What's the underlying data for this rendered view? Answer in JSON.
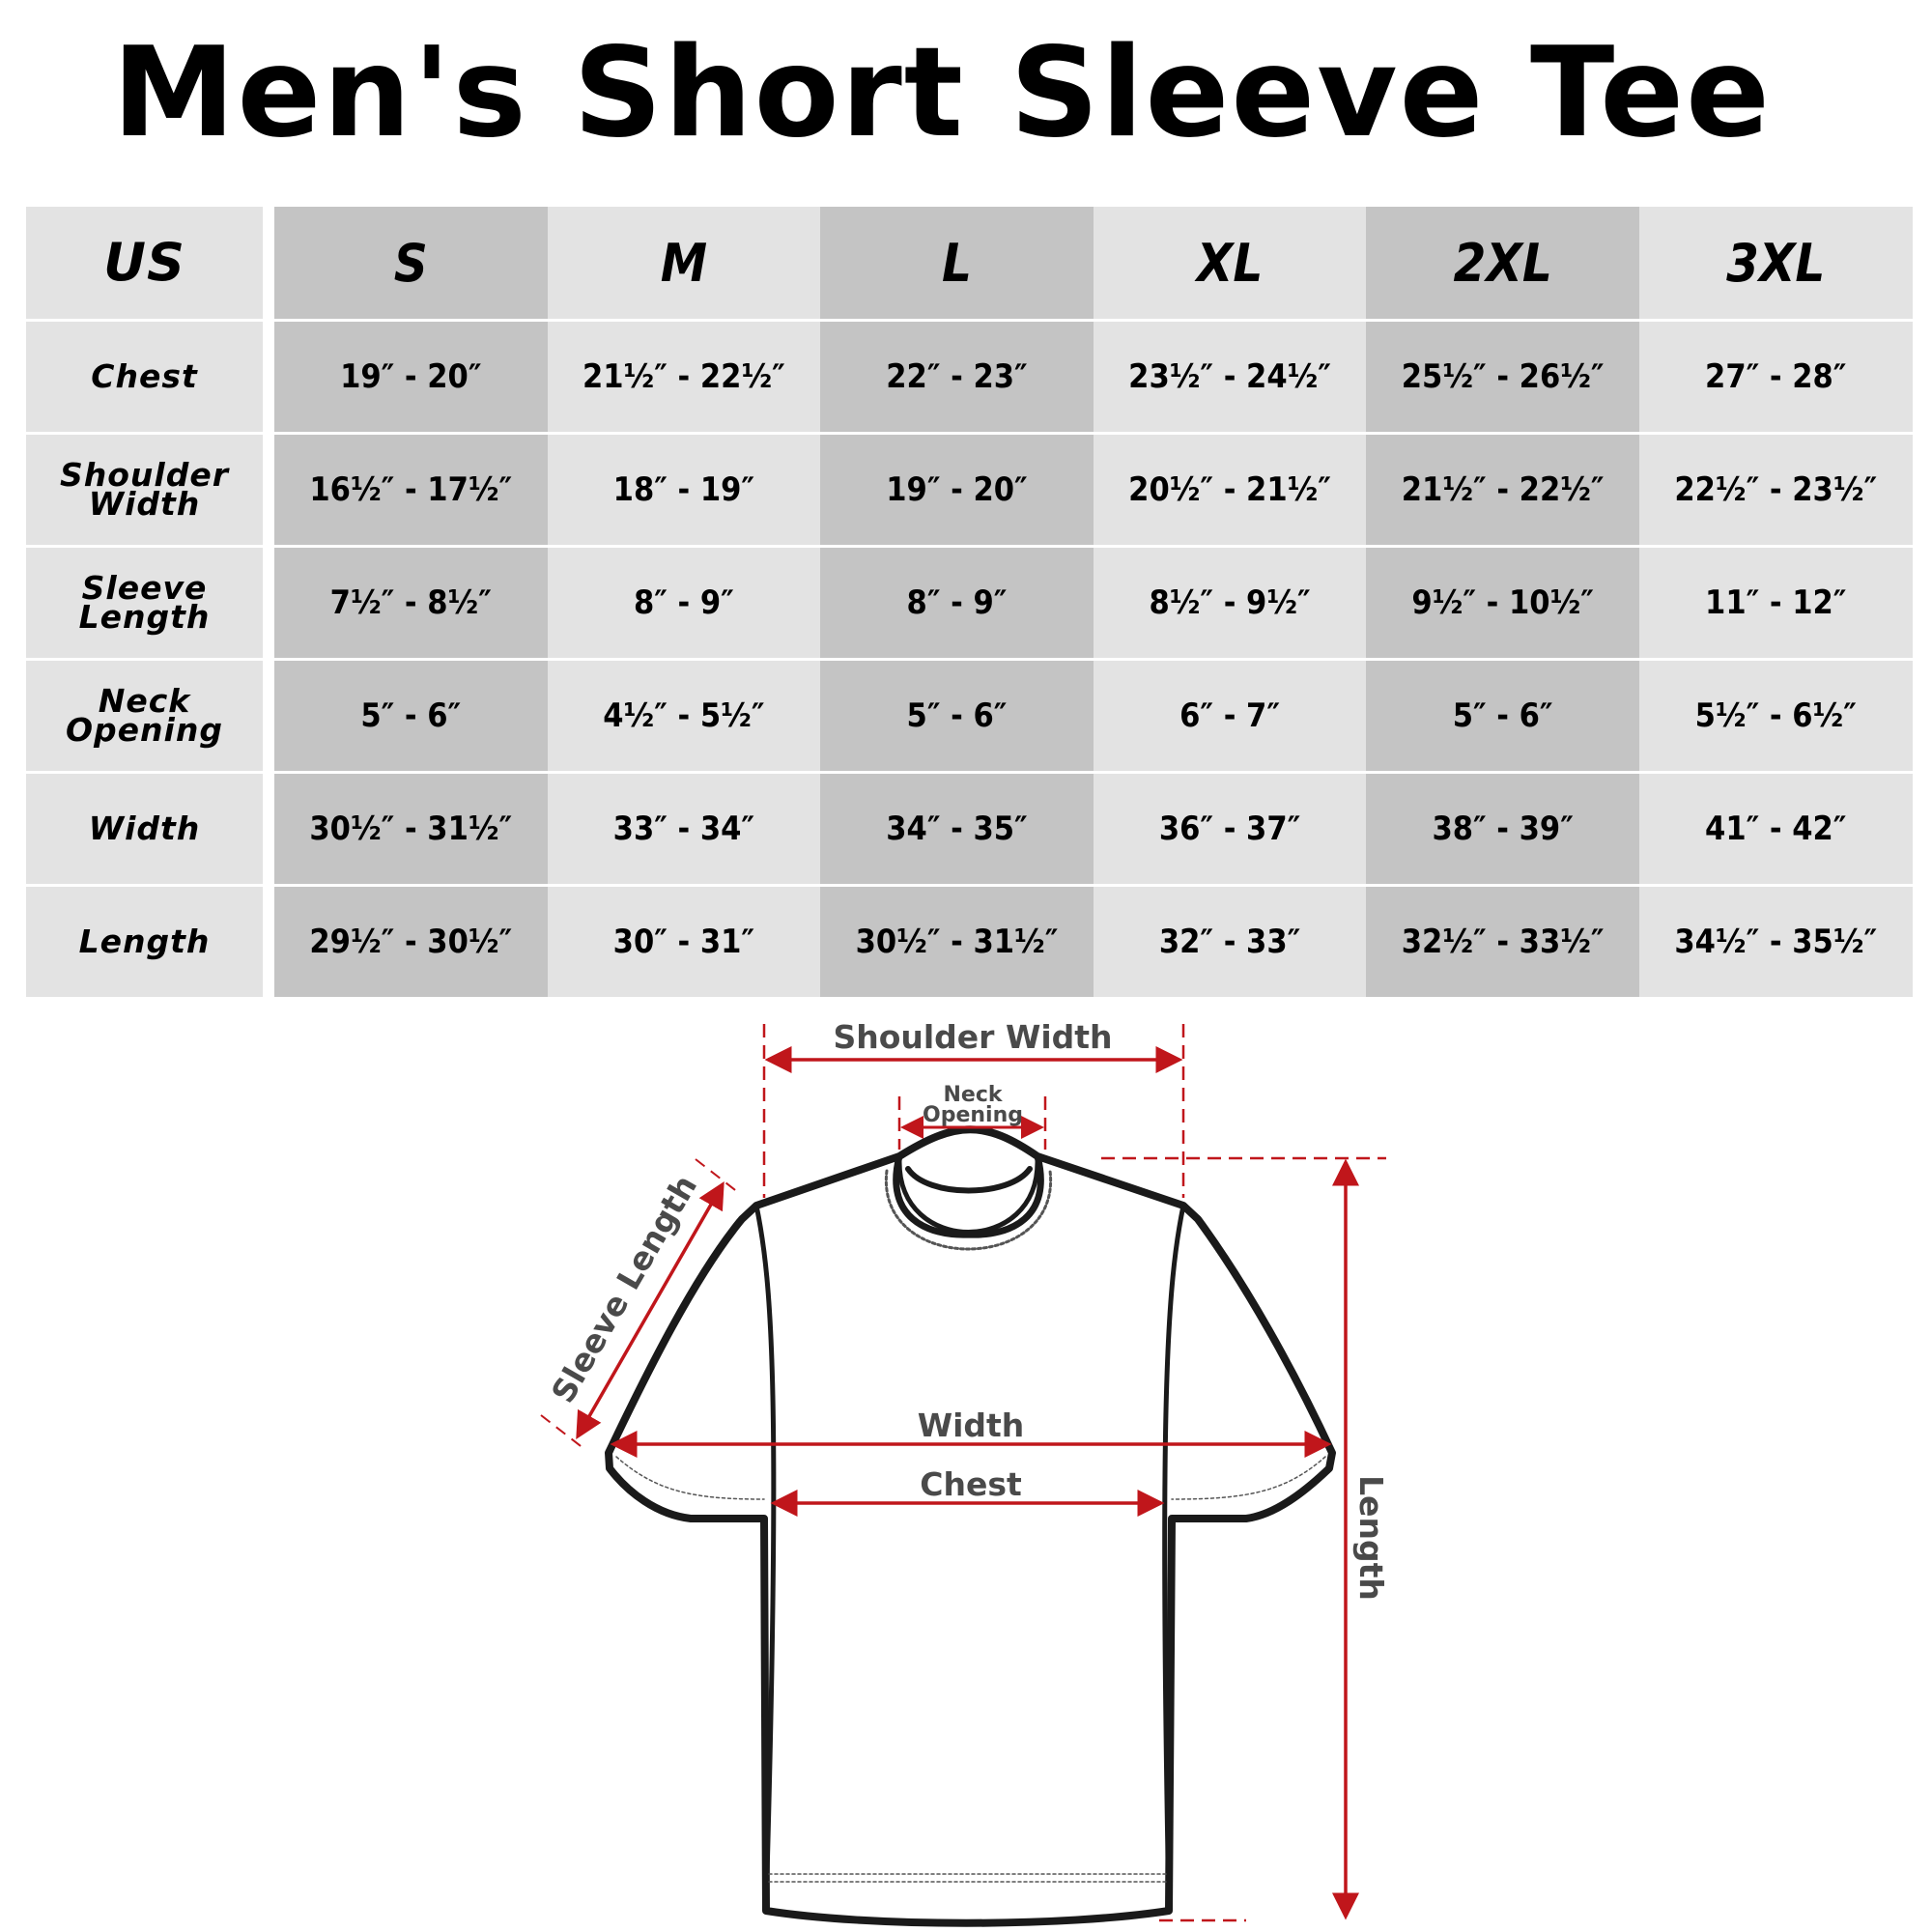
{
  "title": "Men's Short Sleeve Tee",
  "table": {
    "header": [
      "US",
      "S",
      "M",
      "L",
      "XL",
      "2XL",
      "3XL"
    ],
    "rows": [
      {
        "label": "Chest",
        "values": [
          "19″ - 20″",
          "21½″ - 22½″",
          "22″ - 23″",
          "23½″ - 24½″",
          "25½″ - 26½″",
          "27″ - 28″"
        ]
      },
      {
        "label": "Shoulder Width",
        "values": [
          "16½″ - 17½″",
          "18″ - 19″",
          "19″ - 20″",
          "20½″ - 21½″",
          "21½″ - 22½″",
          "22½″ - 23½″"
        ]
      },
      {
        "label": "Sleeve Length",
        "values": [
          "7½″ - 8½″",
          "8″ - 9″",
          "8″ - 9″",
          "8½″ - 9½″",
          "9½″ - 10½″",
          "11″ - 12″"
        ]
      },
      {
        "label": "Neck Opening",
        "values": [
          "5″ - 6″",
          "4½″ - 5½″",
          "5″ - 6″",
          "6″ - 7″",
          "5″ - 6″",
          "5½″ - 6½″"
        ]
      },
      {
        "label": "Width",
        "values": [
          "30½″ - 31½″",
          "33″ - 34″",
          "34″ - 35″",
          "36″ - 37″",
          "38″ - 39″",
          "41″ - 42″"
        ]
      },
      {
        "label": "Length",
        "values": [
          "29½″ - 30½″",
          "30″ - 31″",
          "30½″ - 31½″",
          "32″ - 33″",
          "32½″ - 33½″",
          "34½″ - 35½″"
        ]
      }
    ]
  },
  "diagram": {
    "shoulder_width": "Shoulder Width",
    "neck_line1": "Neck",
    "neck_line2": "Opening",
    "sleeve_length": "Sleeve Length",
    "width": "Width",
    "chest": "Chest",
    "length": "Length",
    "arrow_color": "#c0161b",
    "cell_dark": "#c4c4c4",
    "cell_light": "#e3e3e3"
  }
}
